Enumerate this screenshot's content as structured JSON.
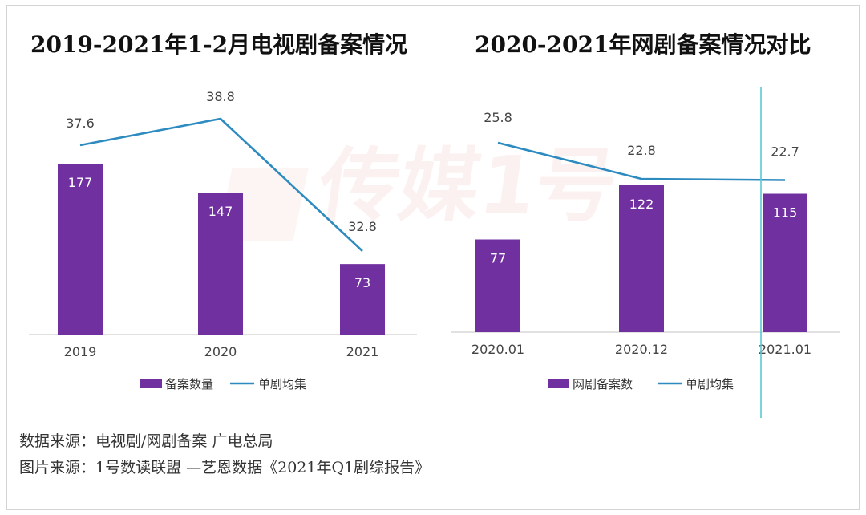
{
  "titles": {
    "left": "2019-2021年1-2月电视剧备案情况",
    "right": "2020-2021年网剧备案情况对比"
  },
  "watermark": "传媒1号",
  "footer": {
    "source": "数据来源：电视剧/网剧备案 广电总局",
    "image_source": "图片来源：1号数读联盟 —艺恩数据《2021年Q1剧综报告》"
  },
  "colors": {
    "bar": "#7030a0",
    "line": "#2e8bc0",
    "guide": "#5bc8d6"
  },
  "chart_data": [
    {
      "type": "bar",
      "title": "2019-2021年1-2月电视剧备案情况",
      "categories": [
        "2019",
        "2020",
        "2021"
      ],
      "series": [
        {
          "name": "备案数量",
          "type": "bar",
          "values": [
            177,
            147,
            73
          ]
        },
        {
          "name": "单剧均集",
          "type": "line",
          "values": [
            37.6,
            38.8,
            32.8
          ]
        }
      ],
      "legend_position": "bottom",
      "grid": false
    },
    {
      "type": "bar",
      "title": "2020-2021年网剧备案情况对比",
      "categories": [
        "2020.01",
        "2020.12",
        "2021.01"
      ],
      "series": [
        {
          "name": "网剧备案数",
          "type": "bar",
          "values": [
            77,
            122,
            115
          ]
        },
        {
          "name": "单剧均集",
          "type": "line",
          "values": [
            25.8,
            22.8,
            22.7
          ]
        }
      ],
      "legend_position": "bottom",
      "grid": false
    }
  ]
}
